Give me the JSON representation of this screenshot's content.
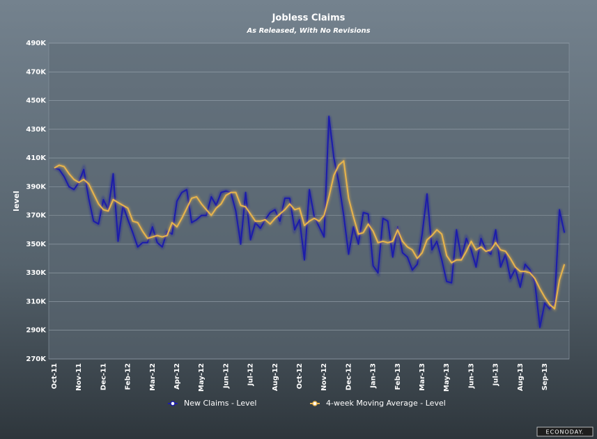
{
  "chart_data": {
    "type": "line",
    "title": "Jobless Claims",
    "subtitle": "As Released, With No Revisions",
    "y_label": "level",
    "watermark": "ECONODAY.",
    "grid": true,
    "legend": "bottom",
    "categories": [
      "Oct-11",
      null,
      null,
      null,
      null,
      "Nov-11",
      null,
      null,
      null,
      null,
      "Dec-11",
      null,
      null,
      null,
      null,
      "Feb-12",
      null,
      null,
      null,
      null,
      "Mar-12",
      null,
      null,
      null,
      null,
      "Apr-12",
      null,
      null,
      null,
      null,
      "May-12",
      null,
      null,
      null,
      null,
      "Jun-12",
      null,
      null,
      null,
      null,
      "Jul-12",
      null,
      null,
      null,
      null,
      "Aug-12",
      null,
      null,
      null,
      null,
      "Oct-12",
      null,
      null,
      null,
      null,
      "Nov-12",
      null,
      null,
      null,
      null,
      "Dec-12",
      null,
      null,
      null,
      null,
      "Jan-13",
      null,
      null,
      null,
      null,
      "Feb-13",
      null,
      null,
      null,
      null,
      "Mar-13",
      null,
      null,
      null,
      null,
      "May-13",
      null,
      null,
      null,
      null,
      "Jun-13",
      null,
      null,
      null,
      null,
      "Jul-13",
      null,
      null,
      null,
      null,
      "Aug-13",
      null,
      null,
      null,
      null,
      "Sep-13",
      null,
      null,
      null,
      null
    ],
    "series": [
      {
        "name": "New Claims - Level",
        "color": "#1c1caa",
        "values": [
          403000,
          402000,
          397000,
          390000,
          388000,
          393000,
          402000,
          382000,
          366000,
          364000,
          381000,
          374000,
          399000,
          352000,
          377000,
          367000,
          358000,
          348000,
          351000,
          351000,
          362000,
          351000,
          348000,
          359000,
          357000,
          380000,
          386000,
          388000,
          365000,
          367000,
          370000,
          370000,
          383000,
          377000,
          386000,
          387000,
          386000,
          373000,
          350000,
          386000,
          353000,
          365000,
          361000,
          367000,
          372000,
          374000,
          366000,
          382000,
          382000,
          360000,
          367000,
          339000,
          388000,
          369000,
          362000,
          355000,
          439000,
          410000,
          393000,
          370000,
          343000,
          362000,
          350000,
          372000,
          371000,
          335000,
          330000,
          368000,
          366000,
          341000,
          362000,
          344000,
          341000,
          332000,
          336000,
          357000,
          385000,
          346000,
          352000,
          339000,
          324000,
          323000,
          360000,
          340000,
          354000,
          346000,
          334000,
          354000,
          346000,
          343000,
          360000,
          334000,
          343000,
          326000,
          333000,
          320000,
          336000,
          332000,
          323000,
          292000,
          309000,
          305000,
          309000,
          374000,
          358000
        ]
      },
      {
        "name": "4-week Moving Average - Level",
        "color": "#e8b44c",
        "values": [
          403000,
          405000,
          404000,
          399000,
          395000,
          393000,
          395000,
          392000,
          385000,
          378000,
          374000,
          373000,
          381000,
          379000,
          377000,
          375000,
          366000,
          365000,
          359000,
          354000,
          355000,
          356000,
          355000,
          356000,
          365000,
          362000,
          368000,
          375000,
          382000,
          383000,
          378000,
          374000,
          370000,
          375000,
          378000,
          384000,
          386000,
          386000,
          377000,
          376000,
          371000,
          366000,
          366000,
          367000,
          364000,
          368000,
          371000,
          374000,
          378000,
          374000,
          375000,
          363000,
          366000,
          368000,
          366000,
          370000,
          383000,
          398000,
          405000,
          408000,
          382000,
          369000,
          357000,
          358000,
          364000,
          359000,
          351000,
          352000,
          351000,
          352000,
          360000,
          352000,
          348000,
          346000,
          340000,
          344000,
          353000,
          356000,
          360000,
          357000,
          342000,
          337000,
          339000,
          339000,
          345000,
          352000,
          346000,
          348000,
          345000,
          346000,
          351000,
          346000,
          345000,
          340000,
          334000,
          331000,
          331000,
          330000,
          326000,
          319000,
          313000,
          308000,
          305000,
          325000,
          336000
        ]
      }
    ],
    "ylim": [
      270000,
      490000
    ],
    "yticks": [
      {
        "value": 270000,
        "label": "270K"
      },
      {
        "value": 290000,
        "label": "290K"
      },
      {
        "value": 310000,
        "label": "310K"
      },
      {
        "value": 330000,
        "label": "330K"
      },
      {
        "value": 350000,
        "label": "350K"
      },
      {
        "value": 370000,
        "label": "370K"
      },
      {
        "value": 390000,
        "label": "390K"
      },
      {
        "value": 410000,
        "label": "410K"
      },
      {
        "value": 430000,
        "label": "430K"
      },
      {
        "value": 450000,
        "label": "450K"
      },
      {
        "value": 470000,
        "label": "470K"
      },
      {
        "value": 490000,
        "label": "490K"
      }
    ]
  }
}
